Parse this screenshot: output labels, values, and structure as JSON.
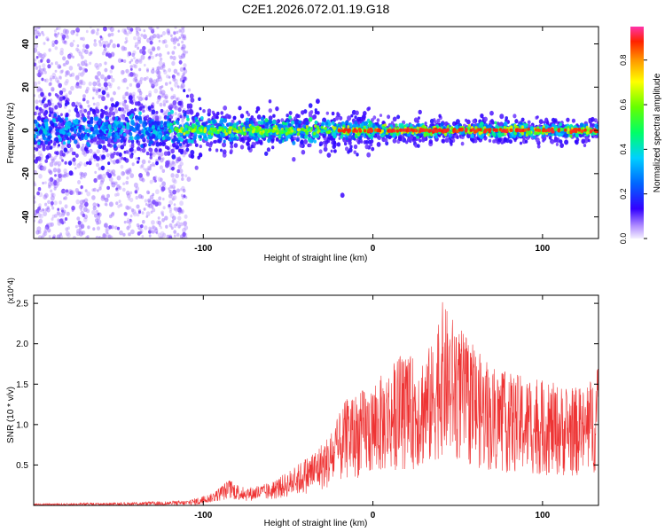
{
  "title": "C2E1.2026.072.01.19.G18",
  "chart_data": [
    {
      "type": "heatmap",
      "title": "C2E1.2026.072.01.19.G18",
      "xlabel": "Height of straight line (km)",
      "ylabel": "Frequency (Hz)",
      "xlim": [
        -200,
        133
      ],
      "ylim": [
        -50,
        48
      ],
      "xticks": [
        -100,
        0,
        100
      ],
      "yticks": [
        -40,
        -20,
        0,
        20,
        40
      ],
      "colorbar": {
        "label": "Normalized spectral amplitude",
        "range": [
          0,
          0.95
        ],
        "ticks": [
          0.0,
          0.2,
          0.4,
          0.6,
          0.8
        ]
      },
      "features": [
        {
          "description": "scattered low-amplitude noise",
          "x_range": [
            -200,
            -110
          ],
          "y_range": [
            -50,
            48
          ]
        },
        {
          "description": "main signal band centered near 0 Hz",
          "x_range": [
            -200,
            133
          ],
          "center_y": 0
        },
        {
          "description": "high amplitude (red) segment",
          "x_range": [
            -20,
            133
          ],
          "y": 0
        },
        {
          "description": "isolated point",
          "x": -18,
          "y": -30
        }
      ]
    },
    {
      "type": "line",
      "xlabel": "Height of straight line (km)",
      "ylabel": "SNR (10 * v/v)",
      "y_multiplier": "(x10^4)",
      "xlim": [
        -200,
        133
      ],
      "ylim": [
        0,
        2.6
      ],
      "xticks": [
        -100,
        0,
        100
      ],
      "yticks": [
        0.5,
        1.0,
        1.5,
        2.0,
        2.5
      ],
      "series": [
        {
          "name": "SNR",
          "color": "#ee3333",
          "envelope": [
            {
              "x": -200,
              "y": 0.02
            },
            {
              "x": -140,
              "y": 0.04
            },
            {
              "x": -110,
              "y": 0.06
            },
            {
              "x": -95,
              "y": 0.15
            },
            {
              "x": -85,
              "y": 0.32
            },
            {
              "x": -75,
              "y": 0.22
            },
            {
              "x": -60,
              "y": 0.28
            },
            {
              "x": -45,
              "y": 0.5
            },
            {
              "x": -35,
              "y": 0.68
            },
            {
              "x": -25,
              "y": 0.9
            },
            {
              "x": -15,
              "y": 1.35
            },
            {
              "x": 0,
              "y": 1.5
            },
            {
              "x": 15,
              "y": 1.85
            },
            {
              "x": 25,
              "y": 1.85
            },
            {
              "x": 35,
              "y": 2.0
            },
            {
              "x": 40,
              "y": 2.55
            },
            {
              "x": 55,
              "y": 2.1
            },
            {
              "x": 70,
              "y": 1.7
            },
            {
              "x": 90,
              "y": 1.6
            },
            {
              "x": 110,
              "y": 1.5
            },
            {
              "x": 125,
              "y": 1.45
            },
            {
              "x": 133,
              "y": 1.75
            }
          ]
        }
      ]
    }
  ]
}
